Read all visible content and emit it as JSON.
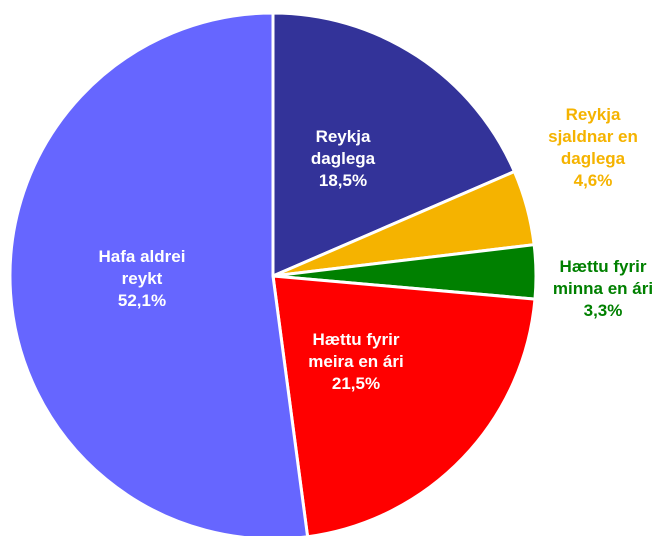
{
  "chart_data": {
    "type": "pie",
    "title": "",
    "slices": [
      {
        "label_lines": [
          "Reykja",
          "daglega"
        ],
        "value": 18.5,
        "value_label": "18,5%",
        "color": "#333399",
        "label_color": "#ffffff",
        "label_position": "inside"
      },
      {
        "label_lines": [
          "Reykja",
          "sjaldnar en",
          "daglega"
        ],
        "value": 4.6,
        "value_label": "4,6%",
        "color": "#f5b300",
        "label_color": "#f5b300",
        "label_position": "outside"
      },
      {
        "label_lines": [
          "Hættu fyrir",
          "minna en ári"
        ],
        "value": 3.3,
        "value_label": "3,3%",
        "color": "#008000",
        "label_color": "#008000",
        "label_position": "outside"
      },
      {
        "label_lines": [
          "Hættu fyrir",
          "meira en ári"
        ],
        "value": 21.5,
        "value_label": "21,5%",
        "color": "#ff0000",
        "label_color": "#ffffff",
        "label_position": "inside"
      },
      {
        "label_lines": [
          "Hafa aldrei",
          "reykt"
        ],
        "value": 52.1,
        "value_label": "52,1%",
        "color": "#6666ff",
        "label_color": "#ffffff",
        "label_position": "inside"
      }
    ],
    "legend": "none"
  }
}
